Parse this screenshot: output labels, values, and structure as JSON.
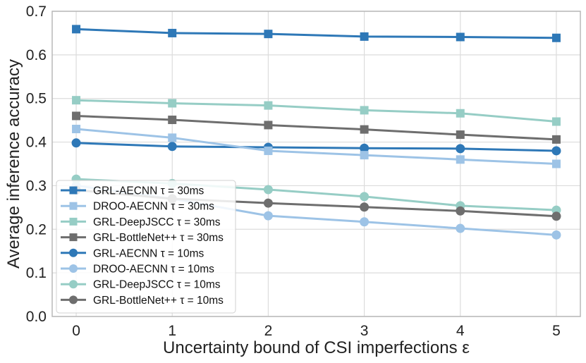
{
  "chart_data": {
    "type": "line",
    "xlabel": "Uncertainty bound of CSI imperfections ε",
    "ylabel": "Average inference accuracy",
    "x": [
      0,
      1,
      2,
      3,
      4,
      5
    ],
    "xlim": [
      -0.25,
      5.25
    ],
    "ylim": [
      0,
      0.7
    ],
    "yticks": [
      "0.0",
      "0.1",
      "0.2",
      "0.3",
      "0.4",
      "0.5",
      "0.6",
      "0.7"
    ],
    "xticks": [
      "0",
      "1",
      "2",
      "3",
      "4",
      "5"
    ],
    "grid": true,
    "legend_position": "bottom-left",
    "series": [
      {
        "name": "GRL-AECNN τ = 30ms",
        "marker": "square",
        "color": "#2e78b7",
        "values": [
          0.659,
          0.65,
          0.648,
          0.642,
          0.641,
          0.639
        ]
      },
      {
        "name": "DROO-AECNN τ = 30ms",
        "marker": "square",
        "color": "#9dc3e6",
        "values": [
          0.43,
          0.41,
          0.38,
          0.37,
          0.36,
          0.35
        ]
      },
      {
        "name": "GRL-DeepJSCC τ = 30ms",
        "marker": "square",
        "color": "#96cdc5",
        "values": [
          0.496,
          0.489,
          0.484,
          0.473,
          0.466,
          0.447
        ]
      },
      {
        "name": "GRL-BottleNet++ τ = 30ms",
        "marker": "square",
        "color": "#6e6e6e",
        "values": [
          0.46,
          0.451,
          0.439,
          0.429,
          0.417,
          0.406
        ]
      },
      {
        "name": "GRL-AECNN τ = 10ms",
        "marker": "circle",
        "color": "#2e78b7",
        "values": [
          0.398,
          0.39,
          0.388,
          0.386,
          0.385,
          0.38
        ]
      },
      {
        "name": "DROO-AECNN τ = 10ms",
        "marker": "circle",
        "color": "#9dc3e6",
        "values": [
          0.3,
          0.27,
          0.231,
          0.217,
          0.202,
          0.187
        ]
      },
      {
        "name": "GRL-DeepJSCC τ = 10ms",
        "marker": "circle",
        "color": "#96cdc5",
        "values": [
          0.315,
          0.305,
          0.291,
          0.275,
          0.254,
          0.244
        ]
      },
      {
        "name": "GRL-BottleNet++ τ = 10ms",
        "marker": "circle",
        "color": "#6e6e6e",
        "values": [
          0.29,
          0.27,
          0.26,
          0.251,
          0.242,
          0.23
        ]
      }
    ]
  }
}
